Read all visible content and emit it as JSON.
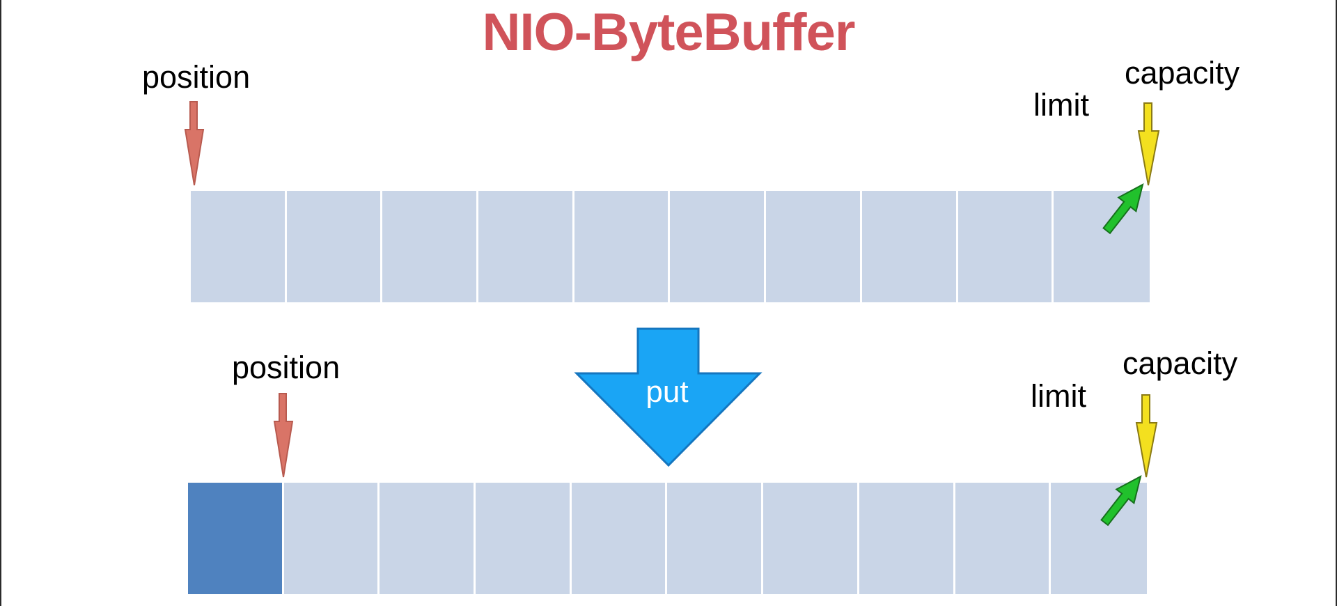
{
  "title": "NIO-ByteBuffer",
  "colors": {
    "title": "#d0535a",
    "cell_empty": "#c9d5e7",
    "cell_filled": "#4f82bf",
    "position_arrow": "#d97467",
    "limit_arrow": "#21c12c",
    "capacity_arrow": "#f3e01f",
    "put_arrow": "#1aa5f5"
  },
  "before": {
    "position_label": "position",
    "limit_label": "limit",
    "capacity_label": "capacity",
    "cell_count": 10,
    "filled_count": 0,
    "position_index": 0
  },
  "operation": {
    "label": "put",
    "icon": "down-arrow-icon"
  },
  "after": {
    "position_label": "position",
    "limit_label": "limit",
    "capacity_label": "capacity",
    "cell_count": 10,
    "filled_count": 1,
    "position_index": 1
  }
}
